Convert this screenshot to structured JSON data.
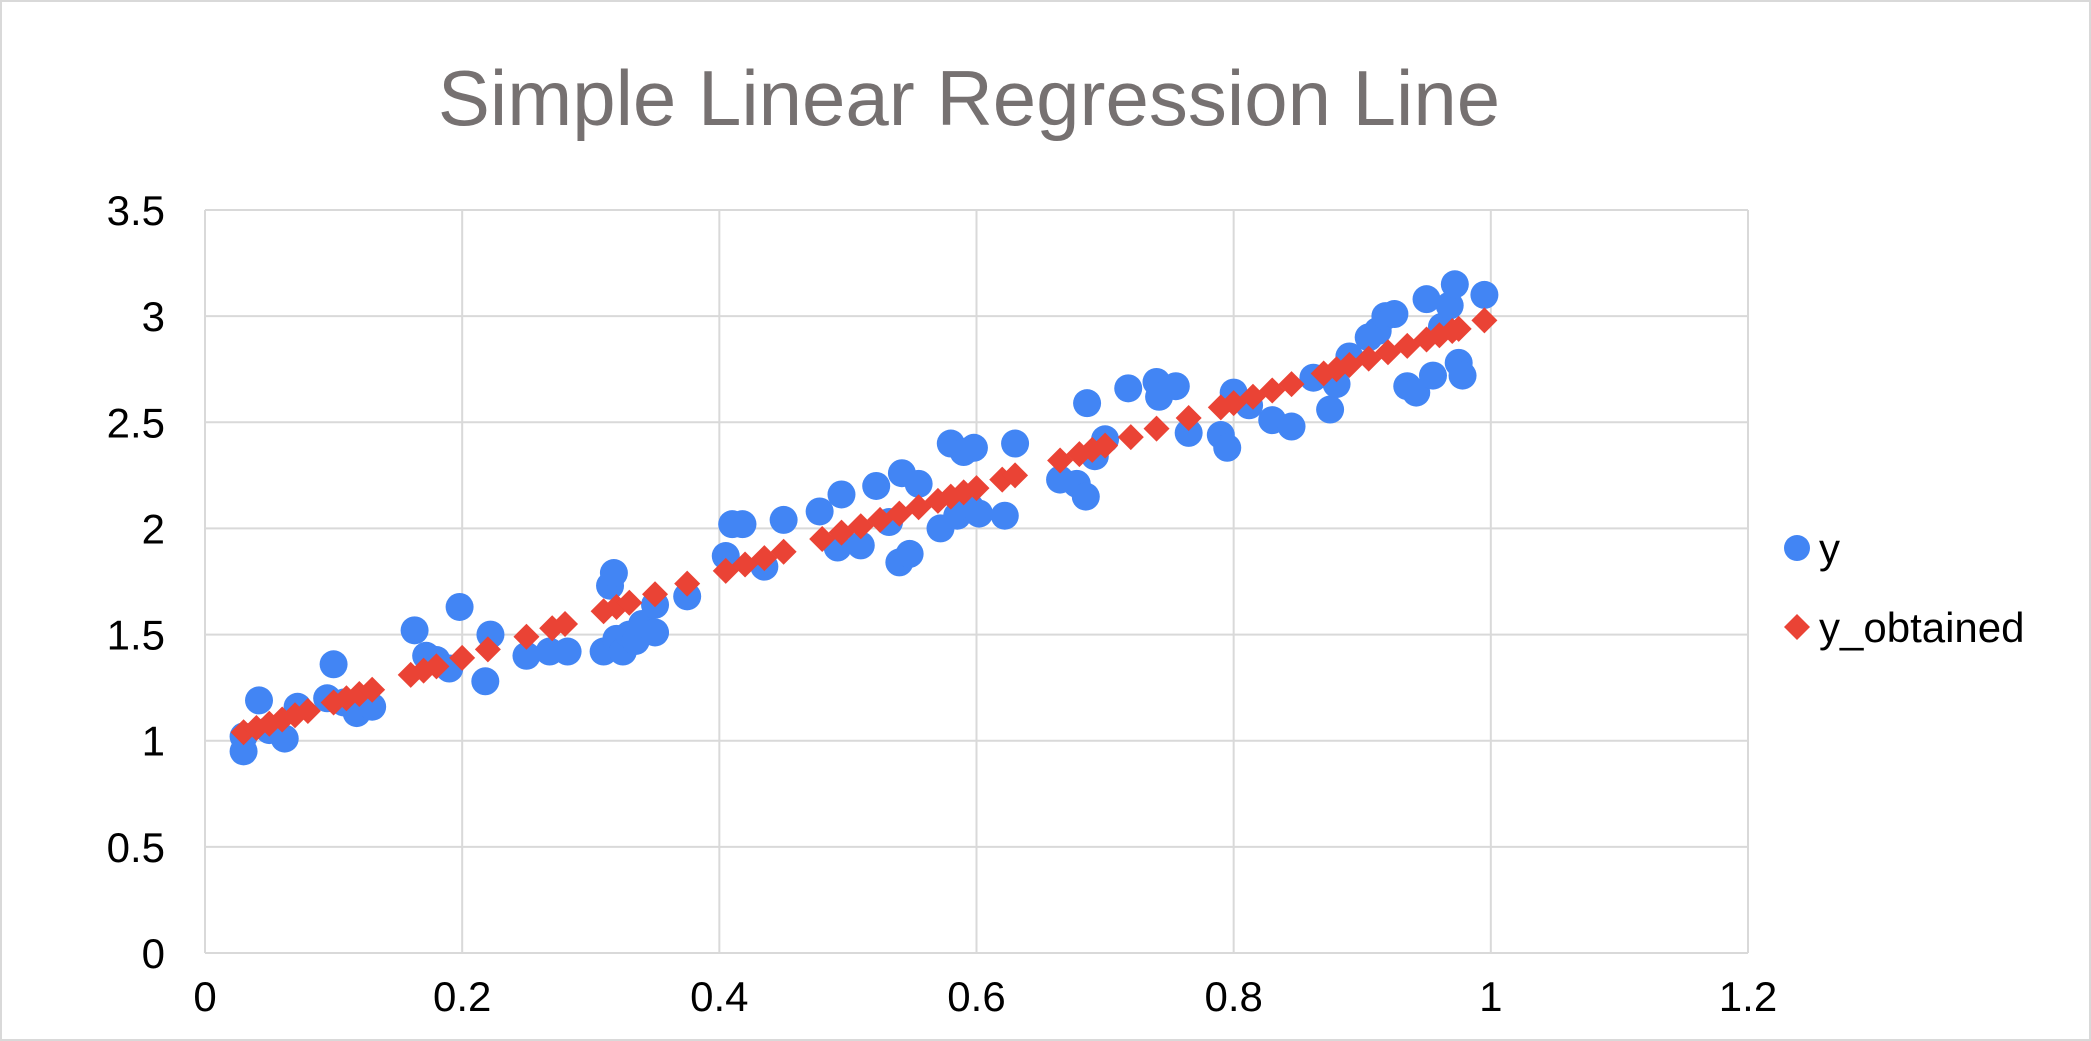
{
  "chart_data": {
    "type": "scatter",
    "title": "Simple Linear Regression Line",
    "xlabel": "",
    "ylabel": "",
    "xlim": [
      0,
      1.2
    ],
    "ylim": [
      0,
      3.5
    ],
    "x_ticks": [
      "0",
      "0.2",
      "0.4",
      "0.6",
      "0.8",
      "1",
      "1.2"
    ],
    "y_ticks": [
      "0",
      "0.5",
      "1",
      "1.5",
      "2",
      "2.5",
      "3",
      "3.5"
    ],
    "grid": true,
    "legend_position": "right",
    "series": [
      {
        "name": "y",
        "marker": "circle",
        "color": "#4285F4",
        "points": [
          [
            0.03,
            0.95
          ],
          [
            0.03,
            1.02
          ],
          [
            0.042,
            1.19
          ],
          [
            0.05,
            1.05
          ],
          [
            0.062,
            1.01
          ],
          [
            0.072,
            1.16
          ],
          [
            0.095,
            1.2
          ],
          [
            0.1,
            1.36
          ],
          [
            0.108,
            1.18
          ],
          [
            0.118,
            1.13
          ],
          [
            0.13,
            1.16
          ],
          [
            0.163,
            1.52
          ],
          [
            0.172,
            1.4
          ],
          [
            0.18,
            1.38
          ],
          [
            0.19,
            1.34
          ],
          [
            0.198,
            1.63
          ],
          [
            0.218,
            1.28
          ],
          [
            0.222,
            1.5
          ],
          [
            0.25,
            1.4
          ],
          [
            0.268,
            1.42
          ],
          [
            0.282,
            1.42
          ],
          [
            0.31,
            1.42
          ],
          [
            0.315,
            1.73
          ],
          [
            0.318,
            1.79
          ],
          [
            0.32,
            1.48
          ],
          [
            0.325,
            1.42
          ],
          [
            0.33,
            1.5
          ],
          [
            0.335,
            1.47
          ],
          [
            0.34,
            1.55
          ],
          [
            0.35,
            1.51
          ],
          [
            0.35,
            1.64
          ],
          [
            0.375,
            1.68
          ],
          [
            0.405,
            1.87
          ],
          [
            0.41,
            2.02
          ],
          [
            0.418,
            2.02
          ],
          [
            0.435,
            1.82
          ],
          [
            0.45,
            2.04
          ],
          [
            0.478,
            2.08
          ],
          [
            0.492,
            1.91
          ],
          [
            0.495,
            2.16
          ],
          [
            0.51,
            1.92
          ],
          [
            0.522,
            2.2
          ],
          [
            0.532,
            2.03
          ],
          [
            0.54,
            1.84
          ],
          [
            0.542,
            2.26
          ],
          [
            0.548,
            1.88
          ],
          [
            0.555,
            2.21
          ],
          [
            0.572,
            2.0
          ],
          [
            0.58,
            2.4
          ],
          [
            0.585,
            2.06
          ],
          [
            0.59,
            2.36
          ],
          [
            0.595,
            2.1
          ],
          [
            0.598,
            2.38
          ],
          [
            0.602,
            2.07
          ],
          [
            0.622,
            2.06
          ],
          [
            0.63,
            2.4
          ],
          [
            0.665,
            2.23
          ],
          [
            0.678,
            2.21
          ],
          [
            0.685,
            2.15
          ],
          [
            0.686,
            2.59
          ],
          [
            0.692,
            2.34
          ],
          [
            0.7,
            2.42
          ],
          [
            0.718,
            2.66
          ],
          [
            0.74,
            2.69
          ],
          [
            0.742,
            2.62
          ],
          [
            0.755,
            2.67
          ],
          [
            0.765,
            2.45
          ],
          [
            0.79,
            2.44
          ],
          [
            0.795,
            2.38
          ],
          [
            0.8,
            2.64
          ],
          [
            0.812,
            2.58
          ],
          [
            0.83,
            2.51
          ],
          [
            0.845,
            2.48
          ],
          [
            0.862,
            2.71
          ],
          [
            0.875,
            2.56
          ],
          [
            0.88,
            2.68
          ],
          [
            0.89,
            2.81
          ],
          [
            0.905,
            2.9
          ],
          [
            0.912,
            2.93
          ],
          [
            0.918,
            3.0
          ],
          [
            0.925,
            3.01
          ],
          [
            0.935,
            2.67
          ],
          [
            0.942,
            2.64
          ],
          [
            0.95,
            3.08
          ],
          [
            0.955,
            2.72
          ],
          [
            0.962,
            2.95
          ],
          [
            0.968,
            3.05
          ],
          [
            0.972,
            3.15
          ],
          [
            0.975,
            2.78
          ],
          [
            0.978,
            2.72
          ],
          [
            0.995,
            3.1
          ]
        ]
      },
      {
        "name": "y_obtained",
        "marker": "diamond",
        "color": "#EA4335",
        "points": [
          [
            0.03,
            1.04
          ],
          [
            0.04,
            1.06
          ],
          [
            0.05,
            1.08
          ],
          [
            0.06,
            1.1
          ],
          [
            0.07,
            1.12
          ],
          [
            0.08,
            1.14
          ],
          [
            0.1,
            1.18
          ],
          [
            0.11,
            1.2
          ],
          [
            0.12,
            1.22
          ],
          [
            0.13,
            1.24
          ],
          [
            0.16,
            1.31
          ],
          [
            0.17,
            1.33
          ],
          [
            0.18,
            1.35
          ],
          [
            0.2,
            1.39
          ],
          [
            0.22,
            1.43
          ],
          [
            0.25,
            1.49
          ],
          [
            0.27,
            1.53
          ],
          [
            0.28,
            1.55
          ],
          [
            0.31,
            1.61
          ],
          [
            0.32,
            1.63
          ],
          [
            0.33,
            1.65
          ],
          [
            0.35,
            1.69
          ],
          [
            0.375,
            1.74
          ],
          [
            0.405,
            1.8
          ],
          [
            0.42,
            1.83
          ],
          [
            0.435,
            1.86
          ],
          [
            0.45,
            1.89
          ],
          [
            0.48,
            1.95
          ],
          [
            0.495,
            1.98
          ],
          [
            0.51,
            2.01
          ],
          [
            0.525,
            2.04
          ],
          [
            0.54,
            2.07
          ],
          [
            0.555,
            2.1
          ],
          [
            0.57,
            2.13
          ],
          [
            0.58,
            2.15
          ],
          [
            0.59,
            2.17
          ],
          [
            0.6,
            2.19
          ],
          [
            0.62,
            2.23
          ],
          [
            0.63,
            2.25
          ],
          [
            0.665,
            2.32
          ],
          [
            0.68,
            2.35
          ],
          [
            0.69,
            2.37
          ],
          [
            0.7,
            2.39
          ],
          [
            0.72,
            2.43
          ],
          [
            0.74,
            2.47
          ],
          [
            0.765,
            2.52
          ],
          [
            0.79,
            2.57
          ],
          [
            0.8,
            2.59
          ],
          [
            0.815,
            2.62
          ],
          [
            0.83,
            2.65
          ],
          [
            0.845,
            2.68
          ],
          [
            0.87,
            2.73
          ],
          [
            0.88,
            2.75
          ],
          [
            0.89,
            2.77
          ],
          [
            0.905,
            2.8
          ],
          [
            0.92,
            2.83
          ],
          [
            0.935,
            2.86
          ],
          [
            0.95,
            2.89
          ],
          [
            0.96,
            2.91
          ],
          [
            0.97,
            2.93
          ],
          [
            0.975,
            2.94
          ],
          [
            0.995,
            2.98
          ]
        ]
      }
    ]
  }
}
